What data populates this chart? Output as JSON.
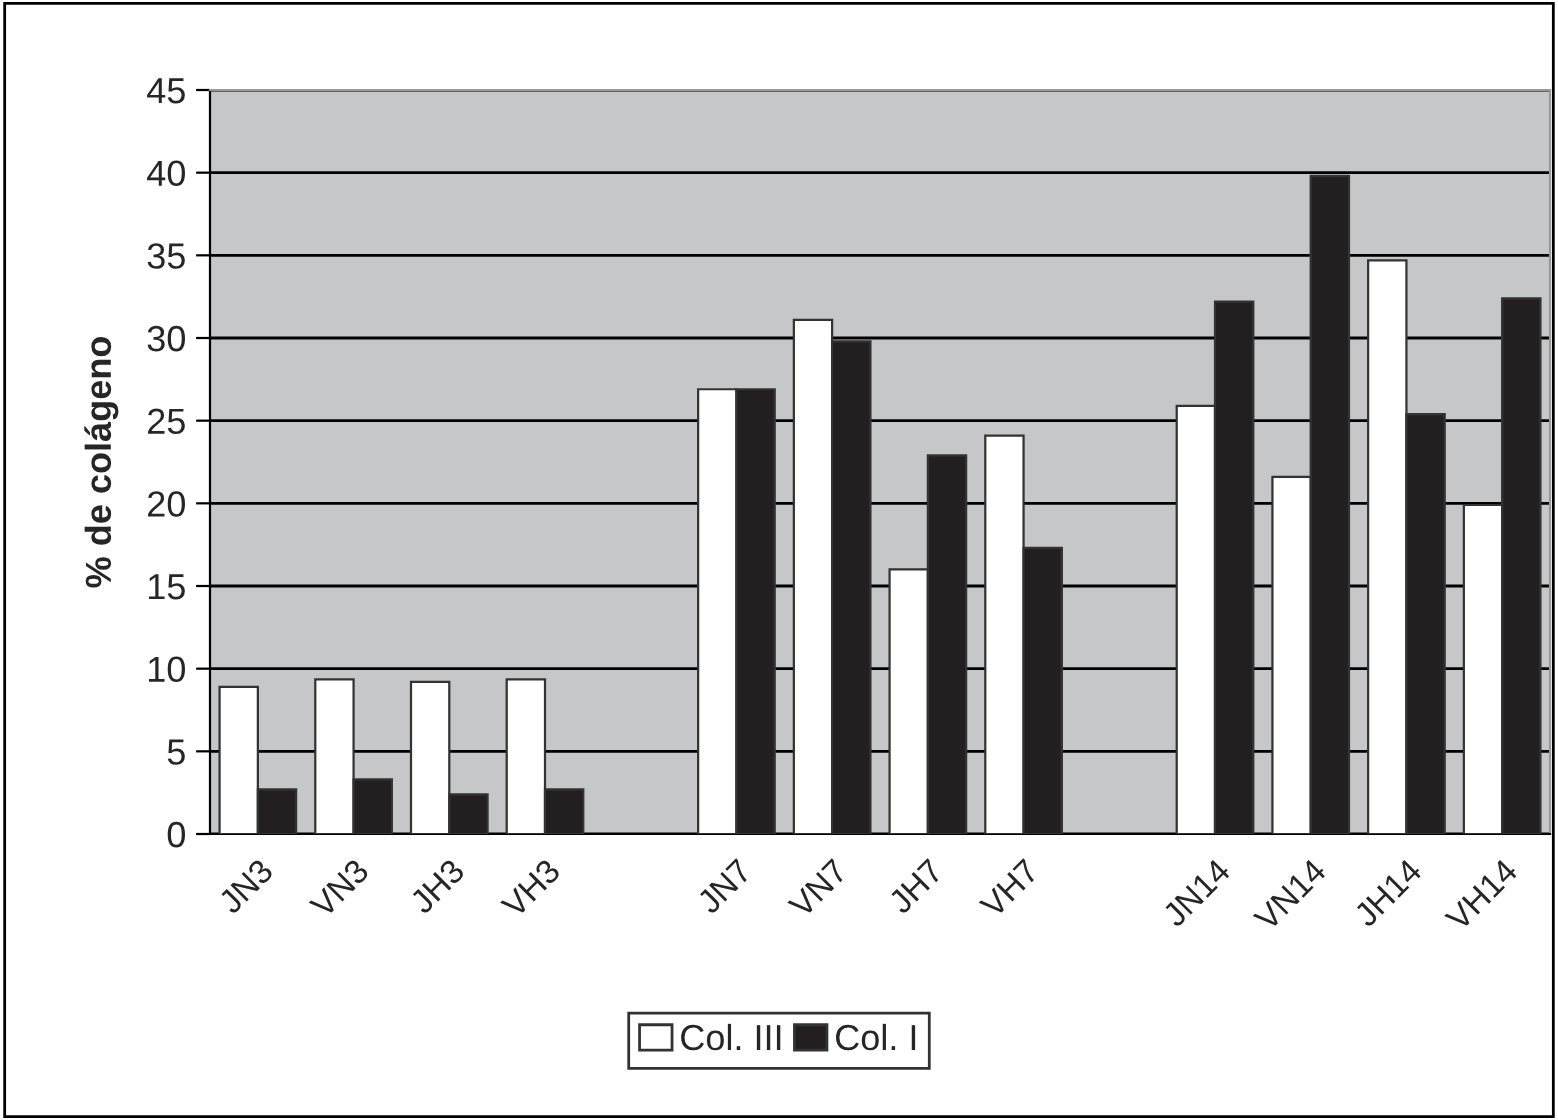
{
  "chart_data": {
    "type": "bar",
    "ylabel": "% de colágeno",
    "categories": [
      "JN3",
      "VN3",
      "JH3",
      "VH3",
      null,
      "JN7",
      "VN7",
      "JH7",
      "VH7",
      null,
      "JN14",
      "VN14",
      "JH14",
      "VH14"
    ],
    "series": [
      {
        "name": "Col. III",
        "color": "#ffffff",
        "values": [
          8.9,
          9.35,
          9.2,
          9.35,
          null,
          26.9,
          31.1,
          16.0,
          24.1,
          null,
          25.9,
          21.6,
          34.7,
          19.9
        ]
      },
      {
        "name": "Col. I",
        "color": "#231f20",
        "values": [
          2.7,
          3.3,
          2.4,
          2.7,
          null,
          26.9,
          29.8,
          22.9,
          17.3,
          null,
          32.2,
          39.8,
          25.4,
          32.4
        ]
      }
    ],
    "ylim": [
      0,
      45
    ],
    "yticks": [
      0,
      5,
      10,
      15,
      20,
      25,
      30,
      35,
      40,
      45
    ],
    "grid": "y",
    "legend": "bottom"
  }
}
